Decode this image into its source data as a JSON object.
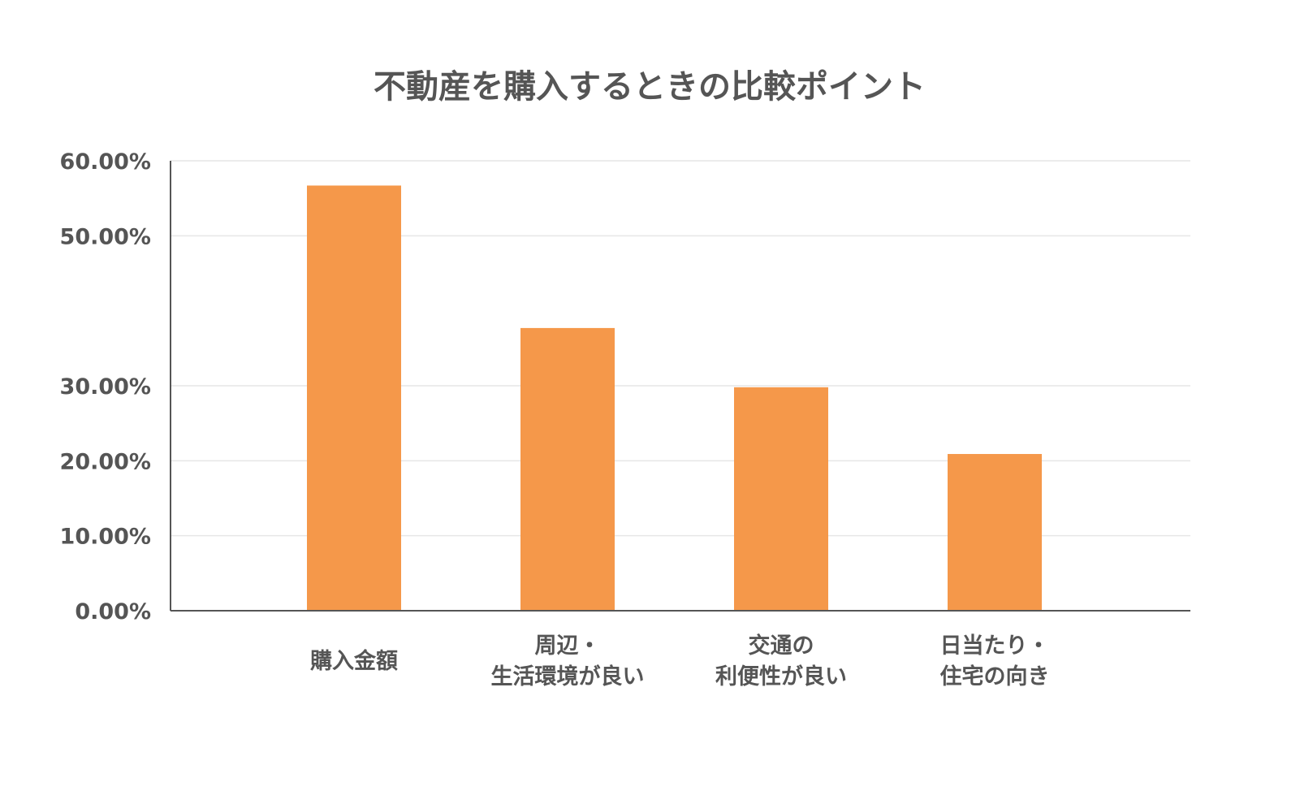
{
  "chart_data": {
    "type": "bar",
    "title": "不動産を購入するときの比較ポイント",
    "xlabel": "",
    "ylabel": "",
    "categories": [
      [
        "購入金額"
      ],
      [
        "周辺・",
        "生活環境が良い"
      ],
      [
        "交通の",
        "利便性が良い"
      ],
      [
        "日当たり・",
        "住宅の向き"
      ]
    ],
    "values": [
      56.7,
      37.7,
      29.8,
      20.9
    ],
    "y_ticks": [
      {
        "value": 0,
        "label": "0.00%"
      },
      {
        "value": 10,
        "label": "10.00%"
      },
      {
        "value": 20,
        "label": "20.00%"
      },
      {
        "value": 30,
        "label": "30.00%"
      },
      {
        "value": 50,
        "label": "50.00%"
      },
      {
        "value": 60,
        "label": "60.00%"
      }
    ],
    "ylim": [
      0,
      60
    ],
    "grid": true,
    "legend": "none",
    "colors": {
      "bar": "#F5984A",
      "grid": "#E6E6E6",
      "axis": "#555555",
      "text": "#555555"
    }
  }
}
